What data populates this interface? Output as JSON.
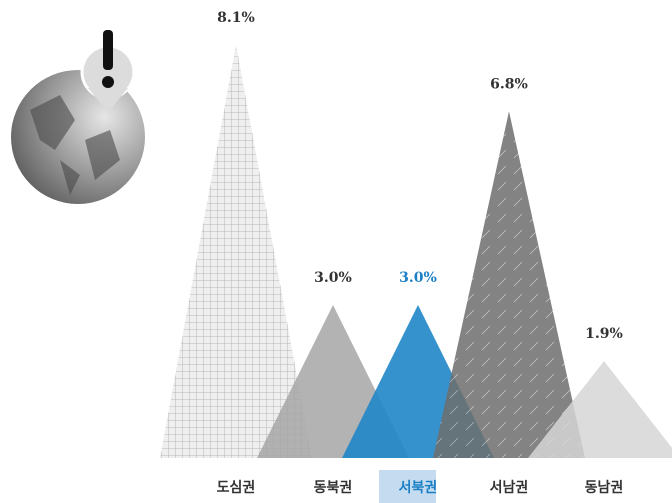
{
  "chart_data": {
    "type": "triangle",
    "categories": [
      "도심권",
      "동북권",
      "서북권",
      "서남권",
      "동남권"
    ],
    "values": [
      8.1,
      3.0,
      3.0,
      6.8,
      1.9
    ],
    "value_labels": [
      "8.1%",
      "3.0%",
      "3.0%",
      "6.8%",
      "1.9%"
    ],
    "colors": [
      "#e4e4e4",
      "#a6a6a6",
      "#1f86c8",
      "#6d6d6d",
      "#d6d6d6"
    ],
    "highlight": 2
  }
}
